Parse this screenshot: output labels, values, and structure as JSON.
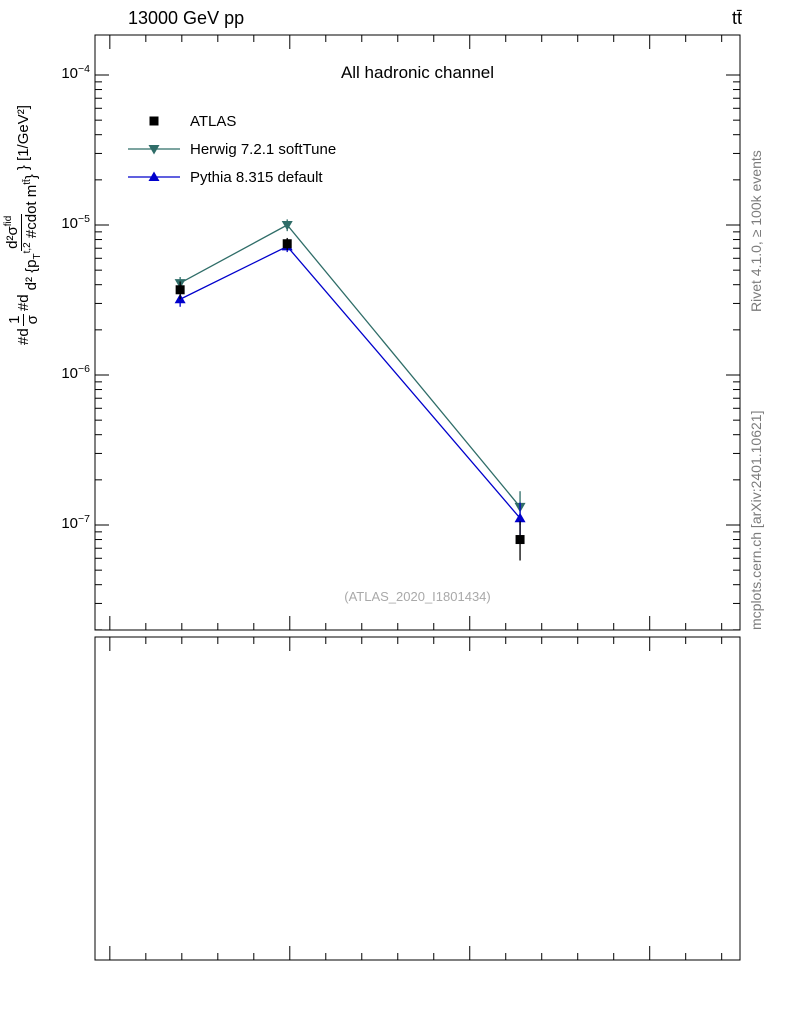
{
  "header": {
    "collision_label": "13000 GeV pp",
    "process_label": "tt̄"
  },
  "side_captions": {
    "rivet": "Rivet 4.1.0, ≥ 100k events",
    "mcplots": "mcplots.cern.ch [arXiv:2401.10621]"
  },
  "y_label": {
    "pre": "#d",
    "frac1_num": "1",
    "frac1_den": "σ",
    "mid": "#d",
    "num_base": "d²σ",
    "num_sup": "fid",
    "den_base1": "d² {p",
    "den_sub1": "T",
    "den_sup1": "t,2",
    "den_base2": " #cdot m",
    "den_sup2": "tt̄",
    "den_base3": "}",
    "suffix": "} [1/GeV²]"
  },
  "chart_data": {
    "type": "scatter",
    "title": "All hadronic channel",
    "watermark": "(ATLAS_2020_I1801434)",
    "x_axis": {
      "label": "",
      "tick_labels_visible": false,
      "major_tick_base_frac": 0.023,
      "minor_step_frac": 0.0558,
      "majors_every": 5
    },
    "y_axis": {
      "scale": "log",
      "unit": "1/GeV²",
      "major_tick_exponents": [
        -4,
        -5,
        -6,
        -7
      ],
      "top_exponent": -3.7333,
      "bottom_exponent": -7.7
    },
    "legend_position": "top-left",
    "series": [
      {
        "name": "ATLAS",
        "marker": "square",
        "color": "#000000",
        "show_line": false,
        "points": [
          {
            "x_frac": 0.132,
            "y": 3.7e-06,
            "yerr_lo": 5e-07,
            "yerr_hi": 5e-07
          },
          {
            "x_frac": 0.298,
            "y": 7.5e-06,
            "yerr_lo": 7e-07,
            "yerr_hi": 7e-07
          },
          {
            "x_frac": 0.659,
            "y": 8e-08,
            "yerr_lo": 2.2e-08,
            "yerr_hi": 2.6e-08
          }
        ]
      },
      {
        "name": "Herwig 7.2.1 softTune",
        "marker": "triangle-down",
        "color": "#2f6d68",
        "show_line": true,
        "points": [
          {
            "x_frac": 0.132,
            "y": 4.1e-06,
            "yerr_lo": 4e-07,
            "yerr_hi": 4e-07
          },
          {
            "x_frac": 0.298,
            "y": 1e-05,
            "yerr_lo": 9e-07,
            "yerr_hi": 9e-07
          },
          {
            "x_frac": 0.659,
            "y": 1.32e-07,
            "yerr_lo": 3.2e-08,
            "yerr_hi": 3.6e-08
          }
        ]
      },
      {
        "name": "Pythia 8.315 default",
        "marker": "triangle-up",
        "color": "#0000cc",
        "show_line": true,
        "points": [
          {
            "x_frac": 0.132,
            "y": 3.2e-06,
            "yerr_lo": 3.5e-07,
            "yerr_hi": 3.5e-07
          },
          {
            "x_frac": 0.298,
            "y": 7.2e-06,
            "yerr_lo": 6e-07,
            "yerr_hi": 6e-07
          },
          {
            "x_frac": 0.659,
            "y": 1.11e-07,
            "yerr_lo": 2.8e-08,
            "yerr_hi": 3e-08
          }
        ]
      }
    ]
  }
}
